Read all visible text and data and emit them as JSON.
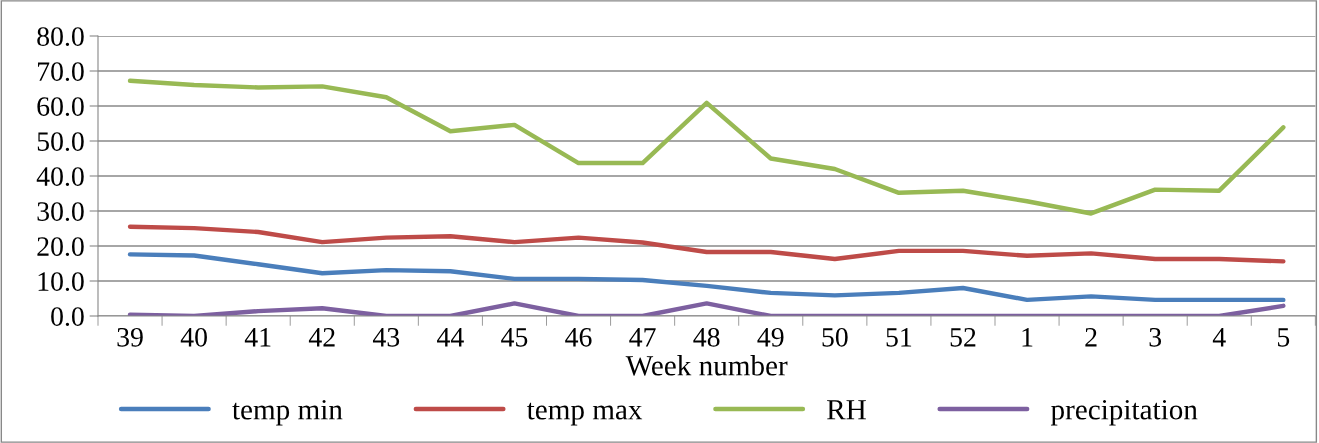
{
  "chart_data": {
    "type": "line",
    "xlabel": "Week number",
    "categories": [
      "39",
      "40",
      "41",
      "42",
      "43",
      "44",
      "45",
      "46",
      "47",
      "48",
      "49",
      "50",
      "51",
      "52",
      "1",
      "2",
      "3",
      "4",
      "5"
    ],
    "series": [
      {
        "name": "temp min",
        "color": "#4a7ebb",
        "values": [
          17.6,
          17.3,
          14.8,
          12.2,
          13.1,
          12.8,
          10.6,
          10.6,
          10.3,
          8.6,
          6.6,
          5.9,
          6.6,
          8.0,
          4.6,
          5.6,
          4.6,
          4.6,
          4.6
        ]
      },
      {
        "name": "temp max",
        "color": "#be4b48",
        "values": [
          25.5,
          25.1,
          24.0,
          21.1,
          22.4,
          22.8,
          21.1,
          22.4,
          21.0,
          18.3,
          18.3,
          16.3,
          18.6,
          18.6,
          17.2,
          17.9,
          16.3,
          16.3,
          15.6
        ]
      },
      {
        "name": "RH",
        "color": "#98b954",
        "values": [
          67.2,
          66.0,
          65.3,
          65.6,
          62.5,
          52.8,
          54.6,
          43.7,
          43.7,
          60.9,
          45.0,
          42.0,
          35.2,
          35.8,
          32.8,
          29.3,
          36.1,
          35.8,
          53.9
        ]
      },
      {
        "name": "precipitation",
        "color": "#7d60a0",
        "values": [
          0.4,
          0,
          1.4,
          2.2,
          0,
          0,
          3.6,
          0,
          0,
          3.6,
          0,
          0,
          0,
          0,
          0,
          0,
          0,
          0,
          2.9
        ]
      }
    ],
    "ylim": [
      0,
      80
    ],
    "yticks": [
      {
        "value": 0,
        "label": "0.0"
      },
      {
        "value": 10,
        "label": "10.0"
      },
      {
        "value": 20,
        "label": "20.0"
      },
      {
        "value": 30,
        "label": "30.0"
      },
      {
        "value": 40,
        "label": "40.0"
      },
      {
        "value": 50,
        "label": "50.0"
      },
      {
        "value": 60,
        "label": "60.0"
      },
      {
        "value": 70,
        "label": "70.0"
      },
      {
        "value": 80,
        "label": "80.0"
      }
    ],
    "grid": "y",
    "legend": "bottom",
    "marker": "none",
    "line_style": "solid"
  }
}
